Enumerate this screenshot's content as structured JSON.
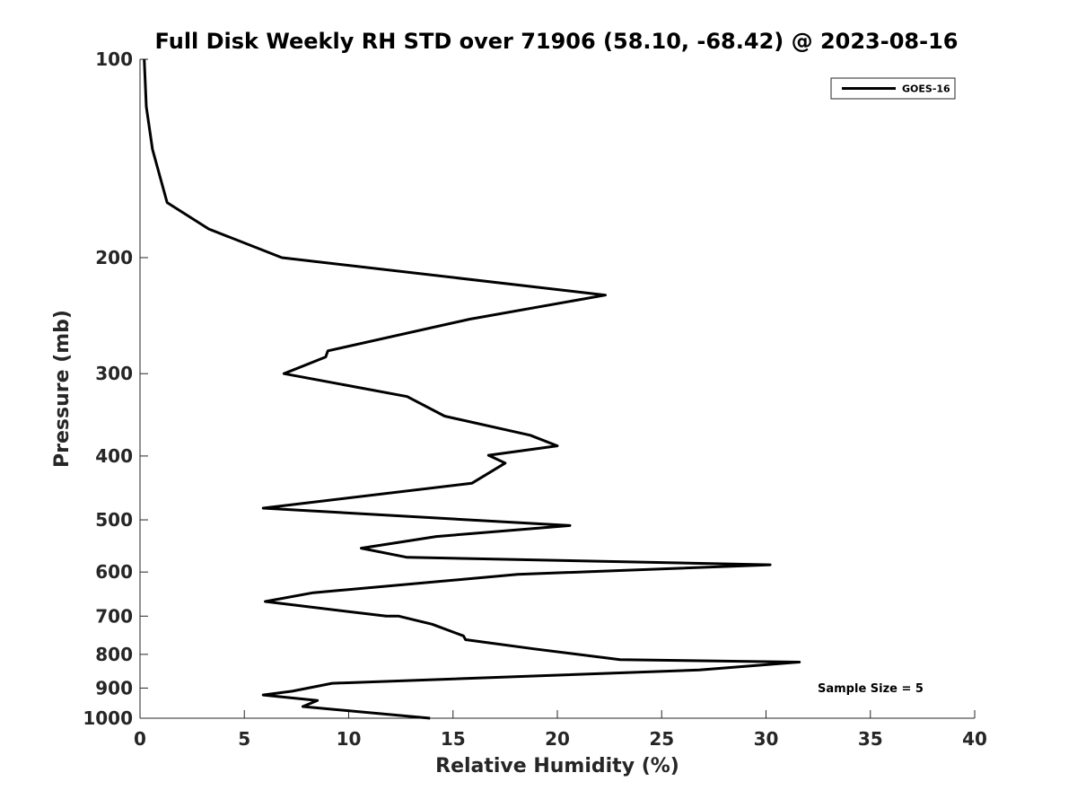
{
  "chart_data": {
    "type": "line",
    "title": "Full Disk Weekly RH STD over 71906 (58.10, -68.42) @ 2023-08-16",
    "xlabel": "Relative Humidity (%)",
    "ylabel": "Pressure (mb)",
    "xlim": [
      0,
      40
    ],
    "ylim": [
      1000,
      100
    ],
    "yscale": "log",
    "x_ticks": [
      0,
      5,
      10,
      15,
      20,
      25,
      30,
      35,
      40
    ],
    "x_tick_labels": [
      "0",
      "5",
      "10",
      "15",
      "20",
      "25",
      "30",
      "35",
      "40"
    ],
    "y_ticks": [
      100,
      200,
      300,
      400,
      500,
      600,
      700,
      800,
      900,
      1000
    ],
    "y_tick_labels": [
      "100",
      "200",
      "300",
      "400",
      "500",
      "600",
      "700",
      "800",
      "900",
      "1000"
    ],
    "grid": false,
    "legend_position": "top-right",
    "annotation": "Sample Size = 5",
    "series": [
      {
        "name": "GOES-16",
        "color": "#000000",
        "x": [
          0.2,
          0.3,
          0.6,
          1.3,
          3.3,
          6.8,
          22.3,
          15.8,
          9.0,
          8.9,
          6.9,
          12.8,
          14.6,
          18.7,
          20.0,
          16.7,
          17.5,
          15.9,
          5.9,
          20.6,
          14.2,
          10.6,
          12.8,
          30.2,
          18.1,
          8.3,
          6.0,
          11.8,
          12.4,
          14.0,
          15.5,
          15.6,
          18.9,
          23.0,
          31.6,
          26.8,
          9.2,
          7.3,
          5.9,
          8.5,
          7.8,
          13.9
        ],
        "y": [
          100,
          118,
          137,
          165,
          181,
          200,
          228,
          248,
          277,
          283,
          300,
          325,
          348,
          372,
          386,
          399,
          410,
          440,
          480,
          510,
          530,
          552,
          570,
          585,
          605,
          645,
          665,
          700,
          700,
          720,
          750,
          760,
          785,
          815,
          822,
          845,
          885,
          910,
          922,
          940,
          960,
          1000
        ]
      }
    ]
  }
}
